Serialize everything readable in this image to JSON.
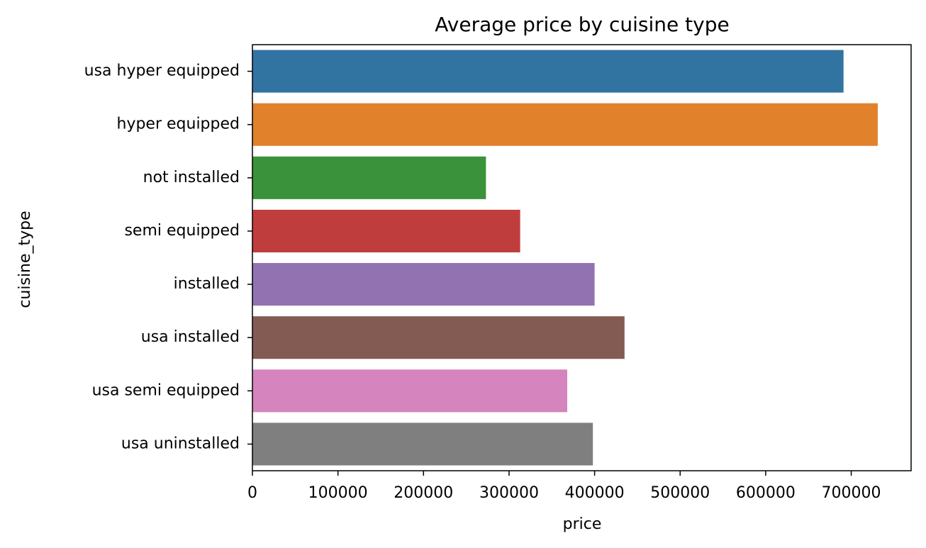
{
  "chart_data": {
    "type": "bar",
    "orientation": "horizontal",
    "title": "Average price by cuisine type",
    "xlabel": "price",
    "ylabel": "cuisine_type",
    "xlim": [
      0,
      770000
    ],
    "xticks": [
      0,
      100000,
      200000,
      300000,
      400000,
      500000,
      600000,
      700000
    ],
    "grid": false,
    "categories": [
      "usa hyper equipped",
      "hyper equipped",
      "not installed",
      "semi equipped",
      "installed",
      "usa installed",
      "usa semi equipped",
      "usa uninstalled"
    ],
    "values": [
      691000,
      731000,
      273000,
      313000,
      400000,
      435000,
      368000,
      398000
    ],
    "colors": [
      "#3274a1",
      "#e1812c",
      "#3a923a",
      "#c03d3e",
      "#9372b2",
      "#845b53",
      "#d684bd",
      "#7f7f7f"
    ]
  }
}
